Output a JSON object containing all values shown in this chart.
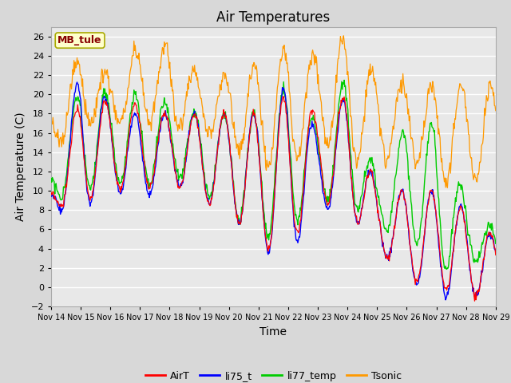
{
  "title": "Air Temperatures",
  "ylabel": "Air Temperature (C)",
  "xlabel": "Time",
  "ylim": [
    -2,
    27
  ],
  "yticks": [
    -2,
    0,
    2,
    4,
    6,
    8,
    10,
    12,
    14,
    16,
    18,
    20,
    22,
    24,
    26
  ],
  "x_tick_days": [
    14,
    15,
    16,
    17,
    18,
    19,
    20,
    21,
    22,
    23,
    24,
    25,
    26,
    27,
    28,
    29
  ],
  "x_tick_labels": [
    "Nov 14",
    "Nov 15",
    "Nov 16",
    "Nov 17",
    "Nov 18",
    "Nov 19",
    "Nov 20",
    "Nov 21",
    "Nov 22",
    "Nov 23",
    "Nov 24",
    "Nov 25",
    "Nov 26",
    "Nov 27",
    "Nov 28",
    "Nov 29"
  ],
  "legend_label": "MB_tule",
  "legend_box_facecolor": "#ffffcc",
  "legend_box_edgecolor": "#aaaa00",
  "legend_text_color": "#880000",
  "series_names": [
    "AirT",
    "li75_t",
    "li77_temp",
    "Tsonic"
  ],
  "series_colors": [
    "#ff0000",
    "#0000ff",
    "#00cc00",
    "#ff9900"
  ],
  "fig_facecolor": "#d8d8d8",
  "plot_facecolor": "#e8e8e8",
  "grid_color": "#ffffff",
  "title_fontsize": 12,
  "axis_label_fontsize": 10,
  "tick_fontsize": 8,
  "legend_fontsize": 9
}
